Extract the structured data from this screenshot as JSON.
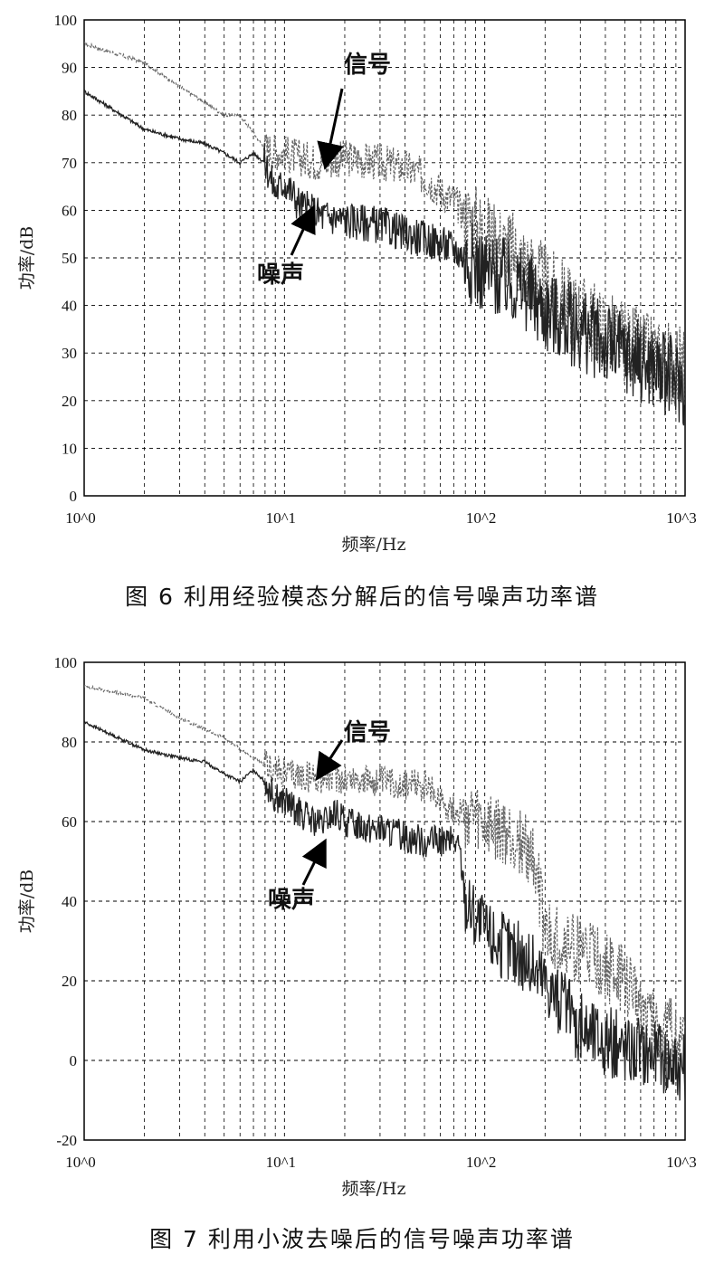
{
  "charts": [
    {
      "id": "fig6",
      "caption": "图 6   利用经验模态分解后的信号噪声功率谱",
      "chart_data": {
        "type": "line",
        "xlabel": "频率/Hz",
        "ylabel": "功率/dB",
        "xscale": "log",
        "xlim": [
          1,
          1000
        ],
        "ylim": [
          0,
          100
        ],
        "xticks": [
          "10^0",
          "10^1",
          "10^2",
          "10^3"
        ],
        "yticks": [
          0,
          10,
          20,
          30,
          40,
          50,
          60,
          70,
          80,
          90,
          100
        ],
        "grid": true,
        "annotations": [
          {
            "text": "信号",
            "target_x": 16,
            "target_y": 70
          },
          {
            "text": "噪声",
            "target_x": 14,
            "target_y": 61
          }
        ],
        "series": [
          {
            "name": "",
            "style": "dashed",
            "color": "#666666",
            "x": [
              1,
              2,
              3,
              5,
              6,
              8,
              10,
              12,
              15,
              20,
              30,
              40,
              50,
              60,
              70,
              80,
              100,
              150,
              200,
              300,
              500,
              700,
              1000
            ],
            "y": [
              95,
              91,
              86,
              80,
              80,
              73,
              72,
              71,
              70,
              71,
              70,
              69,
              67,
              64,
              62,
              59,
              55,
              50,
              44,
              38,
              32,
              29,
              27
            ]
          },
          {
            "name": "",
            "style": "solid",
            "color": "#222222",
            "x": [
              1,
              2,
              3,
              4,
              5,
              6,
              7,
              8,
              9,
              10,
              12,
              15,
              20,
              30,
              40,
              50,
              60,
              70,
              80,
              100,
              150,
              200,
              300,
              500,
              700,
              1000
            ],
            "y": [
              85,
              77,
              75,
              74,
              72,
              70,
              72,
              70,
              64,
              66,
              61,
              59,
              58,
              57,
              55,
              54,
              53,
              52,
              50,
              47,
              44,
              39,
              35,
              30,
              27,
              23
            ]
          }
        ]
      }
    },
    {
      "id": "fig7",
      "caption": "图 7   利用小波去噪后的信号噪声功率谱",
      "chart_data": {
        "type": "line",
        "xlabel": "频率/Hz",
        "ylabel": "功率/dB",
        "xscale": "log",
        "xlim": [
          1,
          1000
        ],
        "ylim": [
          -20,
          100
        ],
        "xticks": [
          "10^0",
          "10^1",
          "10^2",
          "10^3"
        ],
        "yticks": [
          -20,
          0,
          20,
          40,
          60,
          80,
          100
        ],
        "grid": true,
        "annotations": [
          {
            "text": "信号",
            "target_x": 14,
            "target_y": 71
          },
          {
            "text": "噪声",
            "target_x": 16,
            "target_y": 59
          }
        ],
        "series": [
          {
            "name": "",
            "style": "dashed",
            "color": "#666666",
            "x": [
              1,
              2,
              3,
              5,
              8,
              10,
              15,
              20,
              30,
              50,
              70,
              80,
              100,
              150,
              180,
              200,
              300,
              500,
              700,
              1000
            ],
            "y": [
              94,
              91,
              86,
              81,
              74,
              72,
              71,
              71,
              70,
              69,
              63,
              62,
              58,
              55,
              50,
              31,
              28,
              20,
              10,
              4
            ]
          },
          {
            "name": "",
            "style": "solid",
            "color": "#222222",
            "x": [
              1,
              2,
              3,
              4,
              5,
              6,
              7,
              8,
              9,
              10,
              12,
              15,
              18,
              20,
              30,
              50,
              70,
              75,
              80,
              100,
              150,
              200,
              300,
              500,
              700,
              1000
            ],
            "y": [
              85,
              78,
              76,
              75,
              72,
              70,
              73,
              70,
              66,
              65,
              62,
              59,
              62,
              60,
              58,
              55,
              55,
              53,
              40,
              32,
              26,
              20,
              8,
              3,
              2,
              -2
            ]
          }
        ]
      }
    }
  ]
}
